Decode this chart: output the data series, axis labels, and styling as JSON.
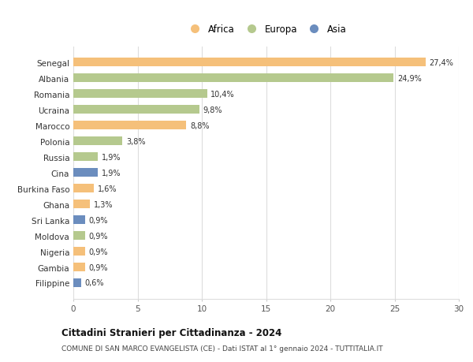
{
  "categories": [
    "Senegal",
    "Albania",
    "Romania",
    "Ucraina",
    "Marocco",
    "Polonia",
    "Russia",
    "Cina",
    "Burkina Faso",
    "Ghana",
    "Sri Lanka",
    "Moldova",
    "Nigeria",
    "Gambia",
    "Filippine"
  ],
  "values": [
    27.4,
    24.9,
    10.4,
    9.8,
    8.8,
    3.8,
    1.9,
    1.9,
    1.6,
    1.3,
    0.9,
    0.9,
    0.9,
    0.9,
    0.6
  ],
  "labels": [
    "27,4%",
    "24,9%",
    "10,4%",
    "9,8%",
    "8,8%",
    "3,8%",
    "1,9%",
    "1,9%",
    "1,6%",
    "1,3%",
    "0,9%",
    "0,9%",
    "0,9%",
    "0,9%",
    "0,6%"
  ],
  "continents": [
    "Africa",
    "Europa",
    "Europa",
    "Europa",
    "Africa",
    "Europa",
    "Europa",
    "Asia",
    "Africa",
    "Africa",
    "Asia",
    "Europa",
    "Africa",
    "Africa",
    "Asia"
  ],
  "colors": {
    "Africa": "#F5C07A",
    "Europa": "#B5C98E",
    "Asia": "#6B8DBE"
  },
  "legend_labels": [
    "Africa",
    "Europa",
    "Asia"
  ],
  "title": "Cittadini Stranieri per Cittadinanza - 2024",
  "subtitle": "COMUNE DI SAN MARCO EVANGELISTA (CE) - Dati ISTAT al 1° gennaio 2024 - TUTTITALIA.IT",
  "xlim": [
    0,
    30
  ],
  "xticks": [
    0,
    5,
    10,
    15,
    20,
    25,
    30
  ],
  "background_color": "#ffffff",
  "grid_color": "#dddddd",
  "bar_height": 0.55
}
